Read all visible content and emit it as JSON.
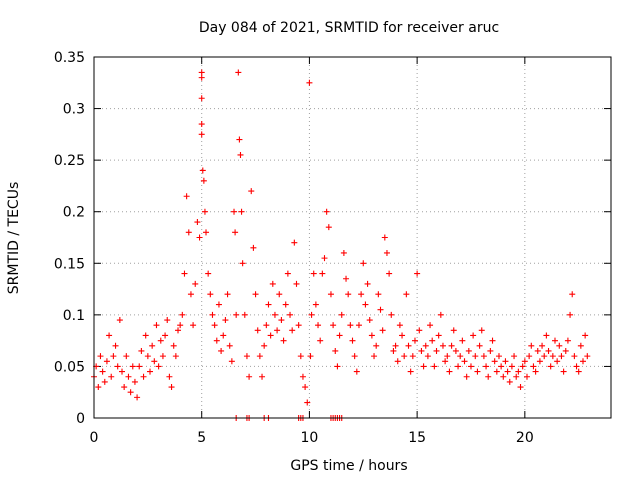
{
  "chart_data": {
    "type": "scatter",
    "title": "Day 084 of 2021, SRMTID for receiver aruc",
    "xlabel": "GPS time / hours",
    "ylabel": "SRMTID / TECUs",
    "xlim": [
      0,
      24
    ],
    "ylim": [
      0,
      0.35
    ],
    "xticks": [
      0,
      5,
      10,
      15,
      20
    ],
    "xtick_labels": [
      "0",
      "5",
      "10",
      "15",
      "20"
    ],
    "yticks": [
      0,
      0.05,
      0.1,
      0.15,
      0.2,
      0.25,
      0.3,
      0.35
    ],
    "ytick_labels": [
      "0",
      "0.05",
      "0.1",
      "0.15",
      "0.2",
      "0.25",
      "0.3",
      "0.35"
    ],
    "grid": true,
    "marker": "+",
    "color": "#ff0000",
    "series": [
      {
        "name": "SRMTID",
        "points": [
          [
            0.0,
            0.04
          ],
          [
            0.1,
            0.05
          ],
          [
            0.2,
            0.03
          ],
          [
            0.3,
            0.06
          ],
          [
            0.4,
            0.045
          ],
          [
            0.5,
            0.035
          ],
          [
            0.6,
            0.055
          ],
          [
            0.7,
            0.08
          ],
          [
            0.8,
            0.04
          ],
          [
            0.9,
            0.06
          ],
          [
            1.0,
            0.07
          ],
          [
            1.1,
            0.05
          ],
          [
            1.2,
            0.095
          ],
          [
            1.3,
            0.045
          ],
          [
            1.4,
            0.03
          ],
          [
            1.5,
            0.06
          ],
          [
            1.6,
            0.04
          ],
          [
            1.7,
            0.025
          ],
          [
            1.8,
            0.05
          ],
          [
            1.9,
            0.035
          ],
          [
            2.0,
            0.02
          ],
          [
            2.1,
            0.05
          ],
          [
            2.2,
            0.065
          ],
          [
            2.3,
            0.04
          ],
          [
            2.4,
            0.08
          ],
          [
            2.5,
            0.06
          ],
          [
            2.6,
            0.045
          ],
          [
            2.7,
            0.07
          ],
          [
            2.8,
            0.055
          ],
          [
            2.9,
            0.09
          ],
          [
            3.0,
            0.05
          ],
          [
            3.1,
            0.075
          ],
          [
            3.2,
            0.06
          ],
          [
            3.3,
            0.08
          ],
          [
            3.4,
            0.095
          ],
          [
            3.5,
            0.04
          ],
          [
            3.6,
            0.03
          ],
          [
            3.7,
            0.07
          ],
          [
            3.8,
            0.06
          ],
          [
            3.9,
            0.085
          ],
          [
            4.0,
            0.09
          ],
          [
            4.1,
            0.1
          ],
          [
            4.2,
            0.14
          ],
          [
            4.3,
            0.215
          ],
          [
            4.4,
            0.18
          ],
          [
            4.5,
            0.12
          ],
          [
            4.6,
            0.09
          ],
          [
            4.7,
            0.13
          ],
          [
            4.8,
            0.19
          ],
          [
            4.9,
            0.175
          ],
          [
            5.0,
            0.335
          ],
          [
            5.0,
            0.33
          ],
          [
            5.0,
            0.31
          ],
          [
            5.0,
            0.285
          ],
          [
            5.0,
            0.275
          ],
          [
            5.05,
            0.24
          ],
          [
            5.1,
            0.23
          ],
          [
            5.15,
            0.2
          ],
          [
            5.2,
            0.18
          ],
          [
            5.3,
            0.14
          ],
          [
            5.4,
            0.12
          ],
          [
            5.5,
            0.1
          ],
          [
            5.6,
            0.09
          ],
          [
            5.7,
            0.075
          ],
          [
            5.8,
            0.11
          ],
          [
            5.9,
            0.065
          ],
          [
            6.0,
            0.08
          ],
          [
            6.1,
            0.095
          ],
          [
            6.2,
            0.12
          ],
          [
            6.3,
            0.07
          ],
          [
            6.4,
            0.055
          ],
          [
            6.5,
            0.2
          ],
          [
            6.55,
            0.18
          ],
          [
            6.6,
            0.1
          ],
          [
            6.7,
            0.335
          ],
          [
            6.75,
            0.27
          ],
          [
            6.8,
            0.255
          ],
          [
            6.85,
            0.2
          ],
          [
            6.9,
            0.15
          ],
          [
            7.0,
            0.1
          ],
          [
            7.1,
            0.06
          ],
          [
            7.2,
            0.04
          ],
          [
            7.3,
            0.22
          ],
          [
            7.4,
            0.165
          ],
          [
            7.5,
            0.12
          ],
          [
            7.6,
            0.085
          ],
          [
            7.7,
            0.06
          ],
          [
            7.8,
            0.04
          ],
          [
            7.9,
            0.07
          ],
          [
            8.0,
            0.09
          ],
          [
            8.1,
            0.11
          ],
          [
            8.2,
            0.08
          ],
          [
            8.3,
            0.13
          ],
          [
            8.4,
            0.1
          ],
          [
            8.5,
            0.085
          ],
          [
            8.6,
            0.12
          ],
          [
            8.7,
            0.095
          ],
          [
            8.8,
            0.075
          ],
          [
            8.9,
            0.11
          ],
          [
            9.0,
            0.14
          ],
          [
            9.1,
            0.1
          ],
          [
            9.2,
            0.085
          ],
          [
            9.3,
            0.17
          ],
          [
            9.4,
            0.13
          ],
          [
            9.5,
            0.09
          ],
          [
            9.6,
            0.06
          ],
          [
            9.7,
            0.04
          ],
          [
            9.8,
            0.03
          ],
          [
            9.9,
            0.015
          ],
          [
            10.0,
            0.325
          ],
          [
            10.05,
            0.06
          ],
          [
            10.1,
            0.1
          ],
          [
            10.2,
            0.14
          ],
          [
            10.3,
            0.11
          ],
          [
            10.4,
            0.09
          ],
          [
            10.5,
            0.075
          ],
          [
            10.6,
            0.14
          ],
          [
            10.7,
            0.155
          ],
          [
            10.8,
            0.2
          ],
          [
            10.9,
            0.185
          ],
          [
            11.0,
            0.12
          ],
          [
            11.1,
            0.09
          ],
          [
            11.2,
            0.065
          ],
          [
            11.3,
            0.05
          ],
          [
            11.4,
            0.08
          ],
          [
            11.5,
            0.1
          ],
          [
            11.6,
            0.16
          ],
          [
            11.7,
            0.135
          ],
          [
            11.8,
            0.12
          ],
          [
            11.9,
            0.09
          ],
          [
            12.0,
            0.075
          ],
          [
            12.1,
            0.06
          ],
          [
            12.2,
            0.045
          ],
          [
            12.3,
            0.09
          ],
          [
            12.4,
            0.12
          ],
          [
            12.5,
            0.15
          ],
          [
            12.6,
            0.11
          ],
          [
            12.7,
            0.13
          ],
          [
            12.8,
            0.095
          ],
          [
            12.9,
            0.08
          ],
          [
            13.0,
            0.06
          ],
          [
            13.1,
            0.07
          ],
          [
            13.2,
            0.12
          ],
          [
            13.3,
            0.105
          ],
          [
            13.4,
            0.085
          ],
          [
            13.5,
            0.175
          ],
          [
            13.6,
            0.16
          ],
          [
            13.7,
            0.14
          ],
          [
            13.8,
            0.1
          ],
          [
            13.9,
            0.065
          ],
          [
            14.0,
            0.07
          ],
          [
            14.1,
            0.055
          ],
          [
            14.2,
            0.09
          ],
          [
            14.3,
            0.08
          ],
          [
            14.4,
            0.06
          ],
          [
            14.5,
            0.12
          ],
          [
            14.6,
            0.07
          ],
          [
            14.7,
            0.045
          ],
          [
            14.8,
            0.06
          ],
          [
            14.9,
            0.075
          ],
          [
            15.0,
            0.14
          ],
          [
            15.1,
            0.085
          ],
          [
            15.2,
            0.065
          ],
          [
            15.3,
            0.05
          ],
          [
            15.4,
            0.07
          ],
          [
            15.5,
            0.06
          ],
          [
            15.6,
            0.09
          ],
          [
            15.7,
            0.075
          ],
          [
            15.8,
            0.05
          ],
          [
            15.9,
            0.065
          ],
          [
            16.0,
            0.08
          ],
          [
            16.1,
            0.1
          ],
          [
            16.2,
            0.07
          ],
          [
            16.3,
            0.055
          ],
          [
            16.4,
            0.06
          ],
          [
            16.5,
            0.045
          ],
          [
            16.6,
            0.07
          ],
          [
            16.7,
            0.085
          ],
          [
            16.8,
            0.065
          ],
          [
            16.9,
            0.05
          ],
          [
            17.0,
            0.06
          ],
          [
            17.1,
            0.075
          ],
          [
            17.2,
            0.055
          ],
          [
            17.3,
            0.04
          ],
          [
            17.4,
            0.065
          ],
          [
            17.5,
            0.05
          ],
          [
            17.6,
            0.08
          ],
          [
            17.7,
            0.06
          ],
          [
            17.8,
            0.045
          ],
          [
            17.9,
            0.07
          ],
          [
            18.0,
            0.085
          ],
          [
            18.1,
            0.06
          ],
          [
            18.2,
            0.05
          ],
          [
            18.3,
            0.04
          ],
          [
            18.4,
            0.065
          ],
          [
            18.5,
            0.075
          ],
          [
            18.6,
            0.055
          ],
          [
            18.7,
            0.045
          ],
          [
            18.8,
            0.06
          ],
          [
            18.9,
            0.05
          ],
          [
            19.0,
            0.04
          ],
          [
            19.1,
            0.055
          ],
          [
            19.2,
            0.045
          ],
          [
            19.3,
            0.035
          ],
          [
            19.4,
            0.05
          ],
          [
            19.5,
            0.06
          ],
          [
            19.6,
            0.04
          ],
          [
            19.7,
            0.045
          ],
          [
            19.8,
            0.03
          ],
          [
            19.9,
            0.05
          ],
          [
            20.0,
            0.055
          ],
          [
            20.1,
            0.04
          ],
          [
            20.2,
            0.06
          ],
          [
            20.3,
            0.07
          ],
          [
            20.4,
            0.05
          ],
          [
            20.5,
            0.045
          ],
          [
            20.6,
            0.065
          ],
          [
            20.7,
            0.055
          ],
          [
            20.8,
            0.07
          ],
          [
            20.9,
            0.06
          ],
          [
            21.0,
            0.08
          ],
          [
            21.1,
            0.065
          ],
          [
            21.2,
            0.05
          ],
          [
            21.3,
            0.06
          ],
          [
            21.4,
            0.075
          ],
          [
            21.5,
            0.055
          ],
          [
            21.6,
            0.07
          ],
          [
            21.7,
            0.06
          ],
          [
            21.8,
            0.045
          ],
          [
            21.9,
            0.065
          ],
          [
            22.0,
            0.075
          ],
          [
            22.1,
            0.1
          ],
          [
            22.2,
            0.12
          ],
          [
            22.3,
            0.06
          ],
          [
            22.4,
            0.05
          ],
          [
            22.5,
            0.045
          ],
          [
            22.6,
            0.07
          ],
          [
            22.7,
            0.055
          ],
          [
            22.8,
            0.08
          ],
          [
            22.9,
            0.06
          ],
          [
            6.6,
            0.0
          ],
          [
            7.1,
            0.0
          ],
          [
            7.2,
            0.0
          ],
          [
            7.9,
            0.0
          ],
          [
            8.1,
            0.0
          ],
          [
            9.5,
            0.0
          ],
          [
            9.6,
            0.0
          ],
          [
            9.7,
            0.0
          ],
          [
            11.0,
            0.0
          ],
          [
            11.1,
            0.0
          ],
          [
            11.2,
            0.0
          ],
          [
            11.3,
            0.0
          ],
          [
            11.4,
            0.0
          ],
          [
            11.5,
            0.0
          ]
        ]
      }
    ]
  }
}
